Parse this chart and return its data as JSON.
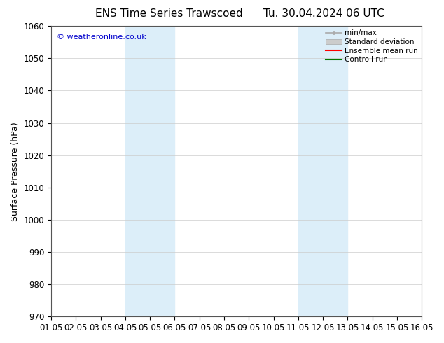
{
  "title_left": "ENS Time Series Trawscoed",
  "title_right": "Tu. 30.04.2024 06 UTC",
  "ylabel": "Surface Pressure (hPa)",
  "xlim": [
    0,
    15
  ],
  "ylim": [
    970,
    1060
  ],
  "yticks": [
    970,
    980,
    990,
    1000,
    1010,
    1020,
    1030,
    1040,
    1050,
    1060
  ],
  "xtick_labels": [
    "01.05",
    "02.05",
    "03.05",
    "04.05",
    "05.05",
    "06.05",
    "07.05",
    "08.05",
    "09.05",
    "10.05",
    "11.05",
    "12.05",
    "13.05",
    "14.05",
    "15.05",
    "16.05"
  ],
  "shaded_bands": [
    {
      "x_start": 3.0,
      "x_end": 5.0
    },
    {
      "x_start": 10.0,
      "x_end": 12.0
    }
  ],
  "shaded_color": "#dceef9",
  "watermark_text": "© weatheronline.co.uk",
  "watermark_color": "#0000cc",
  "background_color": "#ffffff",
  "plot_bg_color": "#ffffff",
  "grid_color": "#cccccc",
  "legend_items": [
    {
      "label": "min/max",
      "color": "#aaaaaa",
      "lw": 1.2,
      "style": "minmax"
    },
    {
      "label": "Standard deviation",
      "color": "#cccccc",
      "lw": 8,
      "style": "rect"
    },
    {
      "label": "Ensemble mean run",
      "color": "#ff0000",
      "lw": 1.5,
      "style": "line"
    },
    {
      "label": "Controll run",
      "color": "#007700",
      "lw": 1.5,
      "style": "line"
    }
  ],
  "title_fontsize": 11,
  "tick_fontsize": 8.5,
  "ylabel_fontsize": 9,
  "watermark_fontsize": 8
}
